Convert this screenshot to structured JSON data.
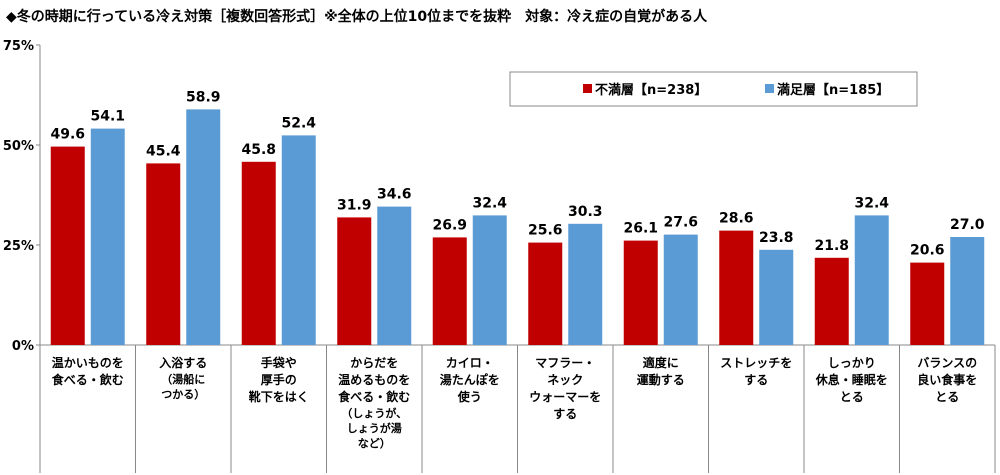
{
  "chart_data": {
    "type": "bar",
    "title": "◆冬の時期に行っている冷え対策［複数回答形式］※全体の上位10位までを抜粋　対象：冷え症の自覚がある人",
    "categories": [
      {
        "lines": [
          "温かいものを",
          "食べる・飲む"
        ],
        "sub": []
      },
      {
        "lines": [
          "入浴する"
        ],
        "sub": [
          "（湯船に",
          "つかる）"
        ]
      },
      {
        "lines": [
          "手袋や",
          "厚手の",
          "靴下をはく"
        ],
        "sub": []
      },
      {
        "lines": [
          "からだを",
          "温めるものを",
          "食べる・飲む"
        ],
        "sub": [
          "（しょうが、",
          "しょうが湯",
          "など）"
        ]
      },
      {
        "lines": [
          "カイロ・",
          "湯たんぽを",
          "使う"
        ],
        "sub": []
      },
      {
        "lines": [
          "マフラー・",
          "ネック",
          "ウォーマーを",
          "する"
        ],
        "sub": []
      },
      {
        "lines": [
          "適度に",
          "運動する"
        ],
        "sub": []
      },
      {
        "lines": [
          "ストレッチを",
          "する"
        ],
        "sub": []
      },
      {
        "lines": [
          "しっかり",
          "休息・睡眠を",
          "とる"
        ],
        "sub": []
      },
      {
        "lines": [
          "バランスの",
          "良い食事を",
          "とる"
        ],
        "sub": []
      }
    ],
    "series": [
      {
        "name": "不満層【n=238】",
        "color": "#C00000",
        "values": [
          49.6,
          45.4,
          45.8,
          31.9,
          26.9,
          25.6,
          26.1,
          28.6,
          21.8,
          20.6
        ]
      },
      {
        "name": "満足層【n=185】",
        "color": "#5B9BD5",
        "values": [
          54.1,
          58.9,
          52.4,
          34.6,
          32.4,
          30.3,
          27.6,
          23.8,
          32.4,
          27.0
        ]
      }
    ],
    "yticks": [
      0,
      25,
      50,
      75
    ],
    "ytick_labels": [
      "0%",
      "25%",
      "50%",
      "75%"
    ],
    "ylim": [
      0,
      75
    ],
    "legend_position": "top-right",
    "grid": false
  }
}
